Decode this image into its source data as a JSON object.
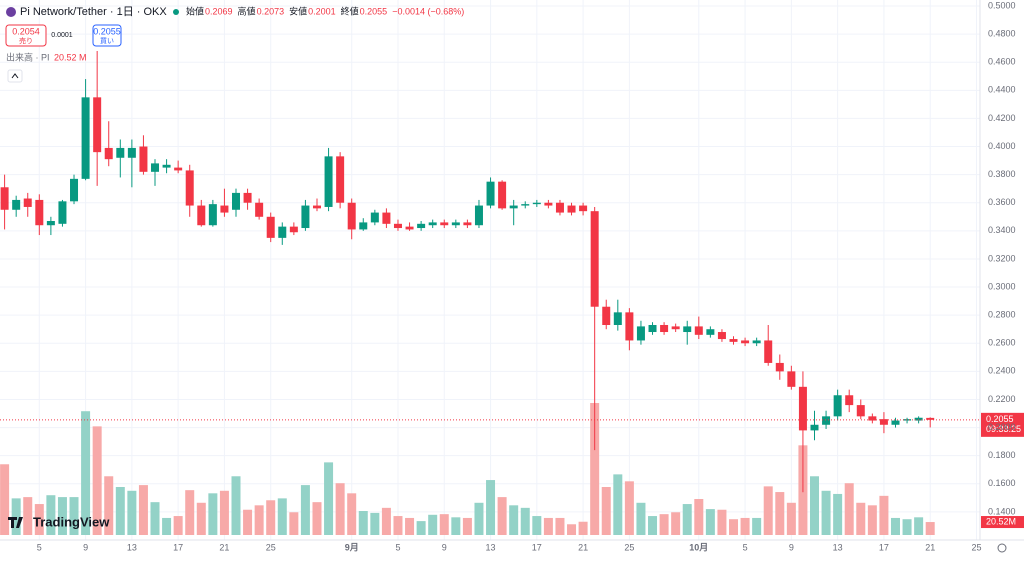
{
  "chart_data": {
    "type": "candlestick",
    "title": "Pi Network/Tether · 1日 · OKX",
    "ohlc_names": {
      "open": "始値",
      "high": "高値",
      "low": "安値",
      "close": "終値"
    },
    "change": "−0.0014 (−0.68%)",
    "sell": {
      "price": "0.2054",
      "label": "売り"
    },
    "spread": "0.0001",
    "buy": {
      "price": "0.2055",
      "label": "買い"
    },
    "volume_title": "出来高 · PI",
    "volume_value": "20.52 M",
    "volume_axis_label": "20.52M",
    "countdown": "09:33:25",
    "logo": "TradingView",
    "up_color": "#089981",
    "down_color": "#f23645",
    "up_volume_color": "#93d2c7",
    "down_volume_color": "#f7a9a8",
    "grid": true,
    "ylim": [
      0.12,
      0.5
    ],
    "yticks": [
      {
        "value": 0.14,
        "label": "0.1400"
      },
      {
        "value": 0.16,
        "label": "0.1600"
      },
      {
        "value": 0.18,
        "label": "0.1800"
      },
      {
        "value": 0.2,
        "label": "0.2000"
      },
      {
        "value": 0.22,
        "label": "0.2200"
      },
      {
        "value": 0.24,
        "label": "0.2400"
      },
      {
        "value": 0.26,
        "label": "0.2600"
      },
      {
        "value": 0.28,
        "label": "0.2800"
      },
      {
        "value": 0.3,
        "label": "0.3000"
      },
      {
        "value": 0.32,
        "label": "0.3200"
      },
      {
        "value": 0.34,
        "label": "0.3400"
      },
      {
        "value": 0.36,
        "label": "0.3600"
      },
      {
        "value": 0.38,
        "label": "0.3800"
      },
      {
        "value": 0.4,
        "label": "0.4000"
      },
      {
        "value": 0.42,
        "label": "0.4200"
      },
      {
        "value": 0.44,
        "label": "0.4400"
      },
      {
        "value": 0.46,
        "label": "0.4600"
      },
      {
        "value": 0.48,
        "label": "0.4800"
      },
      {
        "value": 0.5,
        "label": "0.5000"
      }
    ],
    "categories": [
      null,
      null,
      null,
      "5",
      null,
      null,
      null,
      "9",
      null,
      null,
      null,
      "13",
      null,
      null,
      null,
      "17",
      null,
      null,
      null,
      "21",
      null,
      null,
      null,
      "25",
      null,
      null,
      null,
      null,
      null,
      null,
      "9月",
      null,
      null,
      null,
      "5",
      null,
      null,
      null,
      "9",
      null,
      null,
      null,
      "13",
      null,
      null,
      null,
      "17",
      null,
      null,
      null,
      "21",
      null,
      null,
      null,
      "25",
      null,
      null,
      null,
      null,
      null,
      "10月",
      null,
      null,
      null,
      "5",
      null,
      null,
      null,
      "9",
      null,
      null,
      null,
      "13",
      null,
      null,
      null,
      "17",
      null,
      null,
      null,
      "21",
      null,
      null,
      null,
      "25"
    ],
    "open": [
      0.371,
      0.355,
      0.363,
      0.362,
      0.344,
      0.345,
      0.361,
      0.377,
      0.435,
      0.399,
      0.392,
      0.392,
      0.4,
      0.382,
      0.385,
      0.385,
      0.383,
      0.358,
      0.344,
      0.358,
      0.355,
      0.367,
      0.36,
      0.35,
      0.335,
      0.343,
      0.342,
      0.358,
      0.357,
      0.393,
      0.36,
      0.341,
      0.346,
      0.353,
      0.345,
      0.343,
      0.342,
      0.344,
      0.346,
      0.344,
      0.346,
      0.344,
      0.358,
      0.375,
      0.356,
      0.358,
      0.359,
      0.36,
      0.36,
      0.358,
      0.358,
      0.354,
      0.286,
      0.273,
      0.282,
      0.262,
      0.268,
      0.273,
      0.272,
      0.268,
      0.272,
      0.266,
      0.268,
      0.263,
      0.262,
      0.26,
      0.262,
      0.246,
      0.24,
      0.229,
      0.198,
      0.202,
      0.208,
      0.223,
      0.216,
      0.208,
      0.206,
      0.202,
      0.205,
      0.205,
      0.2069,
      null,
      null,
      null,
      null
    ],
    "high": [
      0.38,
      0.365,
      0.367,
      0.366,
      0.35,
      0.362,
      0.38,
      0.448,
      0.468,
      0.418,
      0.405,
      0.405,
      0.408,
      0.391,
      0.391,
      0.39,
      0.387,
      0.362,
      0.362,
      0.37,
      0.37,
      0.37,
      0.363,
      0.353,
      0.346,
      0.346,
      0.362,
      0.363,
      0.399,
      0.396,
      0.363,
      0.349,
      0.355,
      0.356,
      0.348,
      0.346,
      0.347,
      0.348,
      0.348,
      0.348,
      0.348,
      0.362,
      0.378,
      0.376,
      0.362,
      0.361,
      0.362,
      0.362,
      0.362,
      0.36,
      0.36,
      0.357,
      0.291,
      0.291,
      0.285,
      0.276,
      0.275,
      0.275,
      0.274,
      0.276,
      0.279,
      0.272,
      0.27,
      0.265,
      0.264,
      0.264,
      0.273,
      0.252,
      0.244,
      0.24,
      0.212,
      0.212,
      0.227,
      0.227,
      0.22,
      0.21,
      0.211,
      0.207,
      0.207,
      0.208,
      0.2073,
      null,
      null,
      null,
      null
    ],
    "low": [
      0.341,
      0.35,
      0.35,
      0.337,
      0.337,
      0.343,
      0.359,
      0.376,
      0.372,
      0.386,
      0.378,
      0.371,
      0.38,
      0.372,
      0.381,
      0.381,
      0.35,
      0.343,
      0.343,
      0.35,
      0.35,
      0.355,
      0.348,
      0.332,
      0.33,
      0.337,
      0.34,
      0.354,
      0.354,
      0.356,
      0.334,
      0.34,
      0.344,
      0.342,
      0.34,
      0.34,
      0.34,
      0.342,
      0.342,
      0.342,
      0.342,
      0.342,
      0.356,
      0.355,
      0.344,
      0.356,
      0.357,
      0.356,
      0.351,
      0.351,
      0.351,
      0.184,
      0.27,
      0.269,
      0.255,
      0.259,
      0.266,
      0.266,
      0.268,
      0.259,
      0.263,
      0.264,
      0.261,
      0.259,
      0.258,
      0.258,
      0.244,
      0.234,
      0.227,
      0.154,
      0.191,
      0.199,
      0.205,
      0.211,
      0.206,
      0.203,
      0.196,
      0.2,
      0.203,
      0.203,
      0.2001,
      null,
      null,
      null,
      null
    ],
    "close": [
      0.355,
      0.362,
      0.357,
      0.344,
      0.347,
      0.361,
      0.377,
      0.435,
      0.396,
      0.391,
      0.399,
      0.399,
      0.382,
      0.388,
      0.387,
      0.383,
      0.358,
      0.344,
      0.359,
      0.353,
      0.367,
      0.36,
      0.35,
      0.335,
      0.343,
      0.339,
      0.358,
      0.356,
      0.393,
      0.36,
      0.341,
      0.346,
      0.353,
      0.345,
      0.342,
      0.341,
      0.345,
      0.346,
      0.344,
      0.346,
      0.344,
      0.358,
      0.375,
      0.356,
      0.358,
      0.359,
      0.36,
      0.358,
      0.353,
      0.353,
      0.354,
      0.286,
      0.273,
      0.282,
      0.262,
      0.272,
      0.273,
      0.268,
      0.27,
      0.272,
      0.266,
      0.27,
      0.263,
      0.261,
      0.26,
      0.262,
      0.246,
      0.24,
      0.229,
      0.198,
      0.202,
      0.208,
      0.223,
      0.216,
      0.208,
      0.205,
      0.202,
      0.205,
      0.206,
      0.207,
      0.2055,
      null,
      null,
      null,
      null
    ],
    "volume": [
      112,
      58,
      60,
      49,
      63,
      60,
      60,
      196,
      172,
      93,
      76,
      70,
      79,
      52,
      27,
      30,
      71,
      51,
      66,
      70,
      93,
      40,
      47,
      55,
      58,
      36,
      79,
      52,
      115,
      82,
      66,
      38,
      35,
      43,
      30,
      27,
      22,
      32,
      33,
      28,
      27,
      51,
      87,
      60,
      47,
      43,
      30,
      27,
      27,
      17,
      21,
      209,
      76,
      96,
      85,
      51,
      30,
      33,
      36,
      49,
      57,
      41,
      40,
      25,
      27,
      27,
      77,
      68,
      51,
      142,
      93,
      70,
      65,
      82,
      51,
      47,
      62,
      27,
      25,
      28,
      20.52,
      null,
      null,
      null,
      null
    ]
  }
}
